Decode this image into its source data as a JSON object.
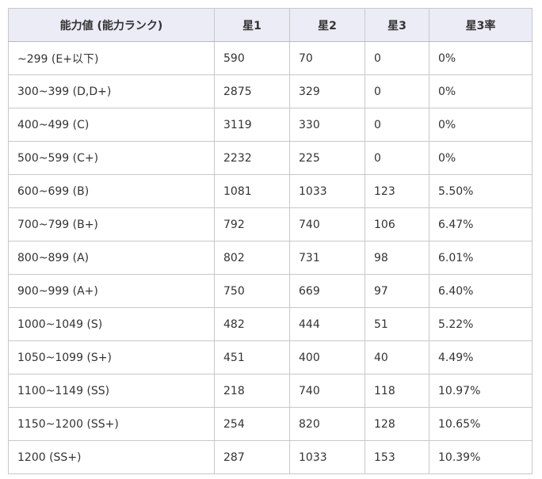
{
  "table": {
    "headers": [
      "能力値 (能力ランク)",
      "星1",
      "星2",
      "星3",
      "星3率"
    ],
    "rows": [
      [
        "~299 (E+以下)",
        "590",
        "70",
        "0",
        "0%"
      ],
      [
        "300~399 (D,D+)",
        "2875",
        "329",
        "0",
        "0%"
      ],
      [
        "400~499 (C)",
        "3119",
        "330",
        "0",
        "0%"
      ],
      [
        "500~599 (C+)",
        "2232",
        "225",
        "0",
        "0%"
      ],
      [
        "600~699 (B)",
        "1081",
        "1033",
        "123",
        "5.50%"
      ],
      [
        "700~799 (B+)",
        "792",
        "740",
        "106",
        "6.47%"
      ],
      [
        "800~899 (A)",
        "802",
        "731",
        "98",
        "6.01%"
      ],
      [
        "900~999 (A+)",
        "750",
        "669",
        "97",
        "6.40%"
      ],
      [
        "1000~1049 (S)",
        "482",
        "444",
        "51",
        "5.22%"
      ],
      [
        "1050~1099 (S+)",
        "451",
        "400",
        "40",
        "4.49%"
      ],
      [
        "1100~1149 (SS)",
        "218",
        "740",
        "118",
        "10.97%"
      ],
      [
        "1150~1200 (SS+)",
        "254",
        "820",
        "128",
        "10.65%"
      ],
      [
        "1200 (SS+)",
        "287",
        "1033",
        "153",
        "10.39%"
      ]
    ]
  }
}
